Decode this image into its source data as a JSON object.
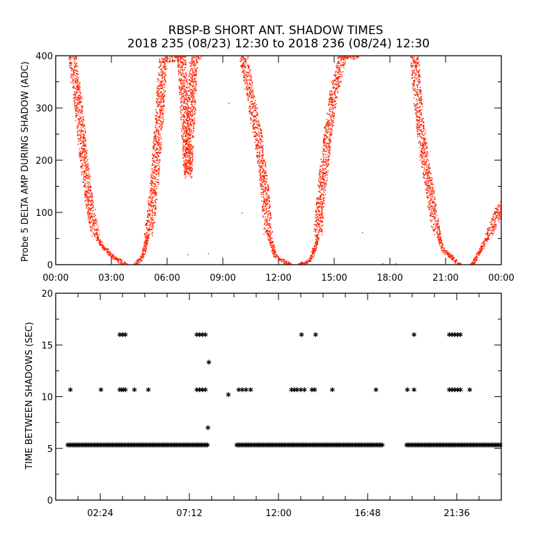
{
  "chart_data": [
    {
      "type": "scatter",
      "title": "RBSP-B SHORT ANT. SHADOW TIMES",
      "subtitle": "2018 235 (08/23) 12:30 to 2018 236 (08/24) 12:30",
      "xlabel": "",
      "ylabel": "Probe 5 DELTA AMP DURING SHADOW (ADC)",
      "xlim": [
        0,
        24
      ],
      "ylim": [
        0,
        400
      ],
      "xticks": [
        0,
        3,
        6,
        9,
        12,
        15,
        18,
        21,
        24
      ],
      "xtick_labels": [
        "00:00",
        "03:00",
        "06:00",
        "09:00",
        "12:00",
        "15:00",
        "18:00",
        "21:00",
        "00:00"
      ],
      "yticks": [
        0,
        100,
        200,
        300,
        400
      ],
      "ytick_labels": [
        "0",
        "100",
        "200",
        "300",
        "400"
      ],
      "color": "#ff2000",
      "grid": false,
      "traces_hours_adc": [
        [
          [
            0.86,
            400
          ],
          [
            1.2,
            308
          ],
          [
            1.5,
            200
          ],
          [
            1.8,
            119
          ],
          [
            2.06,
            65
          ],
          [
            2.44,
            38
          ],
          [
            3.0,
            18
          ],
          [
            3.75,
            1
          ]
        ],
        [
          [
            4.24,
            0
          ],
          [
            4.69,
            18
          ],
          [
            5.06,
            78
          ],
          [
            5.33,
            173
          ],
          [
            5.55,
            281
          ],
          [
            5.74,
            390
          ],
          [
            6.75,
            400
          ],
          [
            7.1,
            173
          ],
          [
            7.4,
            390
          ],
          [
            7.6,
            400
          ]
        ],
        [
          [
            10.1,
            400
          ],
          [
            10.5,
            320
          ],
          [
            10.9,
            240
          ],
          [
            11.2,
            160
          ],
          [
            11.4,
            65
          ],
          [
            11.8,
            18
          ],
          [
            12.6,
            0
          ]
        ],
        [
          [
            13.1,
            0
          ],
          [
            13.7,
            10
          ],
          [
            14.06,
            45
          ],
          [
            14.3,
            146
          ],
          [
            14.6,
            240
          ],
          [
            14.9,
            320
          ],
          [
            15.4,
            400
          ],
          [
            16.1,
            400
          ]
        ],
        [
          [
            19.3,
            400
          ],
          [
            19.5,
            308
          ],
          [
            19.8,
            213
          ],
          [
            20.06,
            160
          ],
          [
            20.4,
            78
          ],
          [
            20.8,
            31
          ],
          [
            21.75,
            0
          ]
        ],
        [
          [
            22.4,
            0
          ],
          [
            22.9,
            31
          ],
          [
            23.4,
            65
          ],
          [
            24.0,
            119
          ]
        ]
      ],
      "isolated_points": [
        [
          7.1,
          20
        ],
        [
          8.2,
          22
        ],
        [
          9.3,
          310
        ],
        [
          10.0,
          100
        ],
        [
          17.6,
          0
        ],
        [
          18.3,
          0
        ],
        [
          16.5,
          62
        ]
      ]
    },
    {
      "type": "scatter",
      "title": "",
      "xlabel": "",
      "ylabel": "TIME BETWEEN SHADOWS (SEC)",
      "xlim": [
        0,
        24
      ],
      "ylim": [
        0,
        20
      ],
      "xticks": [
        2.4,
        7.2,
        12.0,
        16.8,
        21.6
      ],
      "xtick_labels": [
        "02:24",
        "07:12",
        "12:00",
        "16:48",
        "21:36"
      ],
      "yticks": [
        0,
        5,
        10,
        15,
        20
      ],
      "ytick_labels": [
        "0",
        "5",
        "10",
        "15",
        "20"
      ],
      "marker": "asterisk",
      "color": "#000000",
      "baseline_value": 5.33,
      "baseline_ranges_hours": [
        [
          0.65,
          8.2
        ],
        [
          9.75,
          17.6
        ],
        [
          18.9,
          24.0
        ]
      ],
      "points": [
        [
          0.79,
          10.67
        ],
        [
          2.44,
          10.67
        ],
        [
          3.45,
          10.67
        ],
        [
          3.55,
          10.67
        ],
        [
          3.65,
          10.67
        ],
        [
          3.75,
          10.67
        ],
        [
          4.24,
          10.67
        ],
        [
          4.99,
          10.67
        ],
        [
          7.6,
          10.67
        ],
        [
          7.75,
          10.67
        ],
        [
          7.9,
          10.67
        ],
        [
          8.06,
          10.67
        ],
        [
          9.86,
          10.67
        ],
        [
          10.05,
          10.67
        ],
        [
          10.25,
          10.67
        ],
        [
          10.5,
          10.67
        ],
        [
          12.7,
          10.67
        ],
        [
          12.85,
          10.67
        ],
        [
          13.0,
          10.67
        ],
        [
          13.2,
          10.67
        ],
        [
          13.4,
          10.67
        ],
        [
          13.8,
          10.67
        ],
        [
          13.95,
          10.67
        ],
        [
          14.9,
          10.67
        ],
        [
          17.25,
          10.67
        ],
        [
          18.94,
          10.67
        ],
        [
          19.3,
          10.67
        ],
        [
          21.2,
          10.67
        ],
        [
          21.35,
          10.67
        ],
        [
          21.5,
          10.67
        ],
        [
          21.65,
          10.67
        ],
        [
          21.8,
          10.67
        ],
        [
          22.3,
          10.67
        ],
        [
          3.45,
          16
        ],
        [
          3.6,
          16
        ],
        [
          3.75,
          16
        ],
        [
          7.6,
          16
        ],
        [
          7.75,
          16
        ],
        [
          7.9,
          16
        ],
        [
          8.06,
          16
        ],
        [
          13.24,
          16
        ],
        [
          14.0,
          16
        ],
        [
          19.3,
          16
        ],
        [
          21.2,
          16
        ],
        [
          21.35,
          16
        ],
        [
          21.5,
          16
        ],
        [
          21.65,
          16
        ],
        [
          21.8,
          16
        ],
        [
          8.25,
          13.33
        ],
        [
          8.2,
          7.0
        ],
        [
          9.3,
          10.2
        ]
      ]
    }
  ]
}
